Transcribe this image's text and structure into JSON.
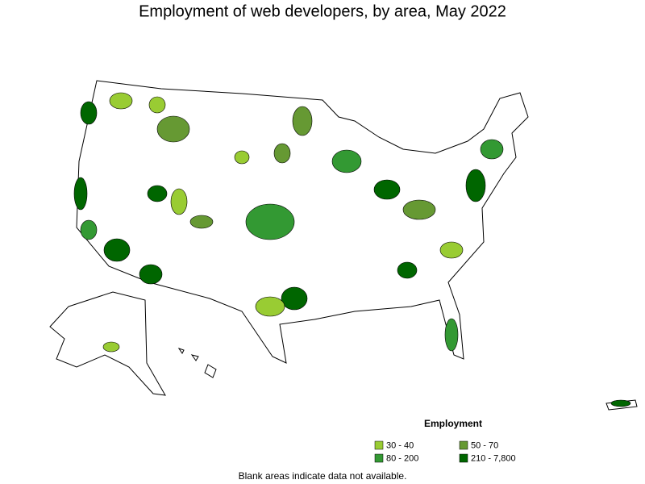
{
  "title": "Employment of web developers, by area, May 2022",
  "legend": {
    "title": "Employment",
    "items": [
      {
        "label": "30 - 40",
        "color": "#99cc33"
      },
      {
        "label": "50 - 70",
        "color": "#669933"
      },
      {
        "label": "80 - 200",
        "color": "#339933"
      },
      {
        "label": "210 - 7,800",
        "color": "#006600"
      }
    ]
  },
  "note": "Blank areas indicate data not available."
}
